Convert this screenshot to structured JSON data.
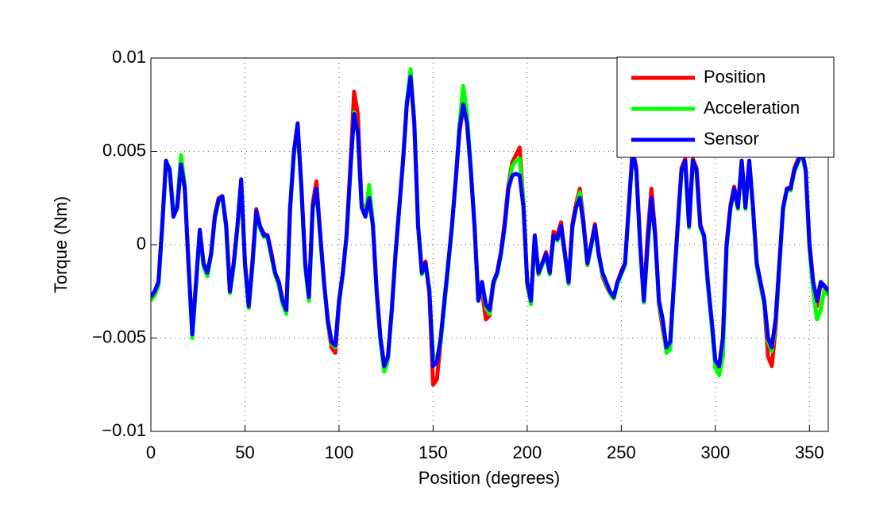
{
  "chart_data": {
    "type": "line",
    "xlabel": "Position (degrees)",
    "ylabel": "Torque (Nm)",
    "x": [
      0,
      2,
      4,
      6,
      8,
      10,
      12,
      14,
      16,
      18,
      20,
      22,
      24,
      26,
      28,
      30,
      32,
      34,
      36,
      38,
      40,
      42,
      44,
      46,
      48,
      50,
      52,
      54,
      56,
      58,
      60,
      62,
      64,
      66,
      68,
      70,
      72,
      74,
      76,
      78,
      80,
      82,
      84,
      86,
      88,
      90,
      92,
      94,
      96,
      98,
      100,
      102,
      104,
      106,
      108,
      110,
      112,
      114,
      116,
      118,
      120,
      122,
      124,
      126,
      128,
      130,
      132,
      134,
      136,
      138,
      140,
      142,
      144,
      146,
      148,
      150,
      152,
      154,
      156,
      158,
      160,
      162,
      164,
      166,
      168,
      170,
      172,
      174,
      176,
      178,
      180,
      182,
      184,
      186,
      188,
      190,
      192,
      194,
      196,
      198,
      200,
      202,
      204,
      206,
      208,
      210,
      212,
      214,
      216,
      218,
      220,
      222,
      224,
      226,
      228,
      230,
      232,
      234,
      236,
      238,
      240,
      242,
      244,
      246,
      248,
      250,
      252,
      254,
      256,
      258,
      260,
      262,
      264,
      266,
      268,
      270,
      272,
      274,
      276,
      278,
      280,
      282,
      284,
      286,
      288,
      290,
      292,
      294,
      296,
      298,
      300,
      302,
      304,
      306,
      308,
      310,
      312,
      314,
      316,
      318,
      320,
      322,
      324,
      326,
      328,
      330,
      332,
      334,
      336,
      338,
      340,
      342,
      344,
      346,
      348,
      350,
      352,
      354,
      356,
      358,
      360
    ],
    "series": [
      {
        "name": "Position",
        "color": "#ff0000",
        "values": [
          -0.0029,
          -0.0026,
          -0.0021,
          0.0009,
          0.0044,
          0.004,
          0.0016,
          0.002,
          0.0042,
          0.003,
          -0.0012,
          -0.0046,
          -0.002,
          0.0007,
          -0.001,
          -0.0016,
          -0.0005,
          0.0016,
          0.0025,
          0.0026,
          0.0011,
          -0.0024,
          -0.001,
          0.001,
          0.0034,
          -0.001,
          -0.0032,
          -0.0009,
          0.0019,
          0.001,
          0.0006,
          0.0005,
          -0.0004,
          -0.0015,
          -0.002,
          -0.003,
          -0.0036,
          0.0018,
          0.0048,
          0.0063,
          0.0031,
          -0.0009,
          -0.0028,
          0.0022,
          0.0034,
          0.0006,
          -0.002,
          -0.0042,
          -0.0055,
          -0.0058,
          -0.0032,
          -0.0016,
          0.0005,
          0.0042,
          0.0082,
          0.007,
          0.0022,
          0.0017,
          0.003,
          0.0011,
          -0.0024,
          -0.005,
          -0.0064,
          -0.006,
          -0.0036,
          -0.0006,
          0.002,
          0.0044,
          0.0074,
          0.0092,
          0.0066,
          0.001,
          -0.0014,
          -0.0009,
          -0.0026,
          -0.0075,
          -0.0072,
          -0.0052,
          -0.0032,
          -0.0012,
          0.001,
          0.0034,
          0.006,
          0.0074,
          0.0066,
          0.0041,
          0.0011,
          -0.0028,
          -0.0025,
          -0.004,
          -0.0038,
          -0.0022,
          -0.0015,
          -0.0004,
          0.0012,
          0.0032,
          0.0044,
          0.0048,
          0.0052,
          0.0022,
          -0.0021,
          -0.0031,
          0.0004,
          -0.0016,
          -0.001,
          -0.0004,
          -0.0014,
          0.0007,
          0.0005,
          0.0012,
          -0.0004,
          -0.0021,
          0.0011,
          0.0022,
          0.003,
          0.0012,
          -0.0011,
          0,
          0.0011,
          -0.0004,
          -0.0017,
          -0.0022,
          -0.0026,
          -0.0029,
          -0.002,
          -0.0014,
          -0.001,
          0.0021,
          0.0051,
          0.0041,
          0.0001,
          -0.003,
          0.0005,
          0.003,
          0.0007,
          -0.0032,
          -0.0045,
          -0.0057,
          -0.0053,
          -0.0021,
          0.0011,
          0.0041,
          0.0046,
          0.0011,
          0.0046,
          0.0041,
          0.0011,
          0.0004,
          -0.0021,
          -0.0042,
          -0.0063,
          -0.0066,
          -0.005,
          0.0001,
          0.0021,
          0.0031,
          0.0021,
          0.0045,
          0.002,
          0.0045,
          0.002,
          -0.0012,
          -0.0022,
          -0.0032,
          -0.006,
          -0.0065,
          -0.0045,
          -0.0012,
          0.0019,
          0.003,
          0.0031,
          0.0041,
          0.0046,
          0.005,
          0.004,
          0.0001,
          -0.002,
          -0.0033,
          -0.0021,
          -0.0023,
          -0.0026
        ]
      },
      {
        "name": "Acceleration",
        "color": "#00ff00",
        "values": [
          -0.003,
          -0.0027,
          -0.0022,
          0.0008,
          0.0043,
          0.0041,
          0.0017,
          0.0022,
          0.0048,
          0.0032,
          -0.0011,
          -0.005,
          -0.0022,
          0.0006,
          -0.0012,
          -0.0017,
          -0.0006,
          0.0014,
          0.0023,
          0.0026,
          0.0009,
          -0.0026,
          -0.0012,
          0.0009,
          0.0034,
          -0.0012,
          -0.0034,
          -0.0012,
          0.0017,
          0.0009,
          0.0004,
          0.0004,
          -0.0006,
          -0.0016,
          -0.0022,
          -0.0032,
          -0.0037,
          0.0018,
          0.0049,
          0.0064,
          0.0029,
          -0.0012,
          -0.003,
          0.0019,
          0.0029,
          0.0004,
          -0.0021,
          -0.0041,
          -0.0053,
          -0.0055,
          -0.0031,
          -0.0016,
          0.0004,
          0.0039,
          0.0071,
          0.006,
          0.0021,
          0.0016,
          0.0032,
          0.0012,
          -0.0026,
          -0.0052,
          -0.0068,
          -0.0062,
          -0.0036,
          -0.0006,
          0.0019,
          0.0045,
          0.0076,
          0.0094,
          0.0066,
          0.0011,
          -0.0016,
          -0.0011,
          -0.0024,
          -0.006,
          -0.006,
          -0.0053,
          -0.0033,
          -0.0012,
          0.0009,
          0.0035,
          0.0064,
          0.0085,
          0.007,
          0.0042,
          0.0011,
          -0.003,
          -0.0021,
          -0.0034,
          -0.0037,
          -0.0021,
          -0.0016,
          -0.0006,
          0.0009,
          0.003,
          0.0042,
          0.0045,
          0.0046,
          0.0022,
          -0.0021,
          -0.0032,
          0.0004,
          -0.0016,
          -0.0011,
          -0.0006,
          -0.0016,
          0.0004,
          0.0002,
          0.0009,
          -0.0006,
          -0.0021,
          0.0009,
          0.002,
          0.0028,
          0.0009,
          -0.0011,
          -0.0001,
          0.0009,
          -0.0006,
          -0.0016,
          -0.0021,
          -0.0026,
          -0.0029,
          -0.0021,
          -0.0016,
          -0.0011,
          0.0019,
          0.0049,
          0.0039,
          -0.0001,
          -0.0031,
          -0.0001,
          0.0024,
          0.0004,
          -0.0031,
          -0.0042,
          -0.0058,
          -0.0056,
          -0.0022,
          0.0009,
          0.0039,
          0.0044,
          0.0009,
          0.0044,
          0.0039,
          0.0009,
          0.0004,
          -0.0022,
          -0.0043,
          -0.0066,
          -0.007,
          -0.006,
          -0.0002,
          0.0019,
          0.0029,
          0.0019,
          0.0044,
          0.0019,
          0.0044,
          0.0019,
          -0.0012,
          -0.0022,
          -0.0032,
          -0.0052,
          -0.0057,
          -0.0042,
          -0.0012,
          0.0018,
          0.0029,
          0.0029,
          0.0039,
          0.0044,
          0.0049,
          0.0039,
          -0.0002,
          -0.0025,
          -0.004,
          -0.0035,
          -0.0024,
          -0.0027
        ]
      },
      {
        "name": "Sensor",
        "color": "#0000ff",
        "values": [
          -0.0028,
          -0.0025,
          -0.002,
          0.001,
          0.0045,
          0.004,
          0.0015,
          0.002,
          0.0043,
          0.003,
          -0.001,
          -0.0048,
          -0.002,
          0.0008,
          -0.001,
          -0.0015,
          -0.0005,
          0.0015,
          0.0024,
          0.0026,
          0.001,
          -0.0025,
          -0.001,
          0.001,
          0.0035,
          -0.001,
          -0.0033,
          -0.001,
          0.0018,
          0.001,
          0.0005,
          0.0005,
          -0.0005,
          -0.0015,
          -0.002,
          -0.003,
          -0.0035,
          0.002,
          0.005,
          0.0065,
          0.003,
          -0.001,
          -0.0028,
          0.002,
          0.003,
          0.0005,
          -0.002,
          -0.004,
          -0.0052,
          -0.0054,
          -0.003,
          -0.0015,
          0.0005,
          0.004,
          0.007,
          0.006,
          0.002,
          0.0015,
          0.0025,
          0.001,
          -0.0025,
          -0.005,
          -0.0065,
          -0.006,
          -0.0035,
          -0.0005,
          0.002,
          0.0045,
          0.0075,
          0.009,
          0.0065,
          0.001,
          -0.0015,
          -0.001,
          -0.0025,
          -0.0065,
          -0.0063,
          -0.005,
          -0.003,
          -0.001,
          0.001,
          0.0035,
          0.0062,
          0.0075,
          0.0065,
          0.004,
          0.001,
          -0.003,
          -0.002,
          -0.0032,
          -0.0035,
          -0.002,
          -0.0015,
          -0.0005,
          0.001,
          0.003,
          0.0037,
          0.0038,
          0.0037,
          0.002,
          -0.002,
          -0.003,
          0.0005,
          -0.0015,
          -0.001,
          -0.0005,
          -0.0015,
          0.0005,
          0.0003,
          0.001,
          -0.0005,
          -0.002,
          0.001,
          0.002,
          0.0025,
          0.001,
          -0.001,
          0,
          0.001,
          -0.0005,
          -0.0015,
          -0.002,
          -0.0025,
          -0.0028,
          -0.002,
          -0.0015,
          -0.001,
          0.002,
          0.005,
          0.004,
          0,
          -0.003,
          0,
          0.0025,
          0.0005,
          -0.003,
          -0.004,
          -0.0055,
          -0.0052,
          -0.002,
          0.001,
          0.004,
          0.0045,
          0.001,
          0.0045,
          0.004,
          0.001,
          0.0005,
          -0.002,
          -0.004,
          -0.0062,
          -0.0065,
          -0.005,
          0,
          0.002,
          0.003,
          0.002,
          0.0045,
          0.002,
          0.0045,
          0.002,
          -0.001,
          -0.002,
          -0.003,
          -0.005,
          -0.0055,
          -0.004,
          -0.001,
          0.002,
          0.003,
          0.003,
          0.004,
          0.0045,
          0.005,
          0.004,
          0,
          -0.002,
          -0.003,
          -0.002,
          -0.0022,
          -0.0025
        ]
      }
    ],
    "xlim": [
      0,
      360
    ],
    "xticks": [
      0,
      50,
      100,
      150,
      200,
      250,
      300,
      350
    ],
    "ylim": [
      -0.01,
      0.01
    ],
    "yticks": [
      {
        "value": -0.01,
        "label": "−0.01"
      },
      {
        "value": -0.005,
        "label": "−0.005"
      },
      0,
      0.005,
      0.01
    ],
    "grid": true,
    "legend": "northeast"
  }
}
